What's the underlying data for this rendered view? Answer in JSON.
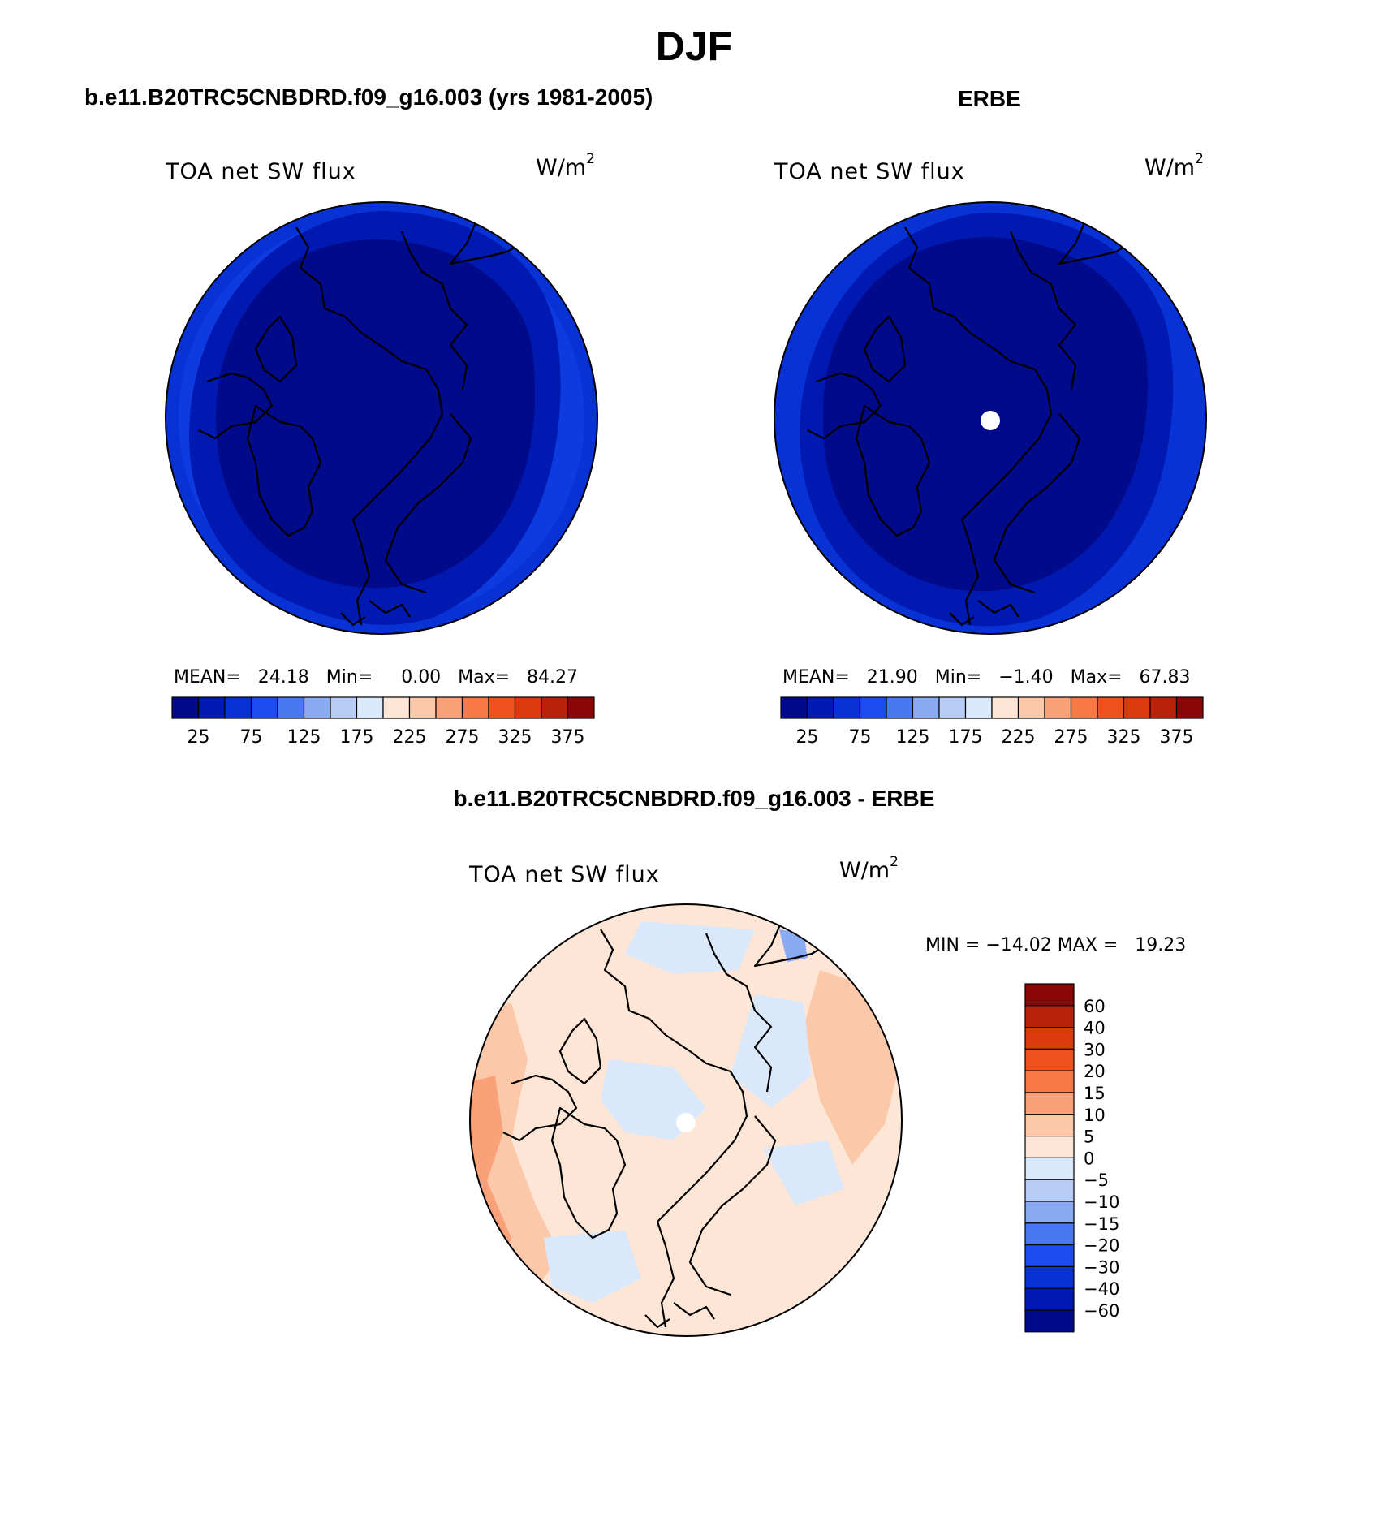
{
  "figure": {
    "title": "DJF"
  },
  "panels": {
    "model": {
      "case_title": "b.e11.B20TRC5CNBDRD.f09_g16.003 (yrs 1981-2005)",
      "label": "TOA net SW flux",
      "units_base": "W/m",
      "units_exp": "2",
      "stats": "MEAN=   24.18   Min=     0.00   Max=   84.27"
    },
    "obs": {
      "case_title": "ERBE",
      "label": "TOA net SW flux",
      "units_base": "W/m",
      "units_exp": "2",
      "stats": "MEAN=   21.90   Min=   −1.40   Max=   67.83"
    },
    "diff": {
      "case_title": "b.e11.B20TRC5CNBDRD.f09_g16.003 - ERBE",
      "label": "TOA net SW flux",
      "units_base": "W/m",
      "units_exp": "2",
      "stats": "MIN = −14.02 MAX =   19.23"
    }
  },
  "colorbar_abs": {
    "colors": [
      "#000a8a",
      "#0019b0",
      "#0832d6",
      "#1a4cf0",
      "#4a78f0",
      "#8aaaf4",
      "#b8ccf8",
      "#dae8fc",
      "#fde6d6",
      "#fcc8aa",
      "#f9a27a",
      "#f77a46",
      "#f0521e",
      "#dc3a0e",
      "#b82208",
      "#880606"
    ],
    "labels": [
      "25",
      "75",
      "125",
      "175",
      "225",
      "275",
      "325",
      "375"
    ]
  },
  "colorbar_diff": {
    "colors": [
      "#880606",
      "#b82208",
      "#dc3a0e",
      "#f0521e",
      "#f77a46",
      "#f9a27a",
      "#fcc8aa",
      "#fde6d6",
      "#dae8fc",
      "#b8ccf8",
      "#8aaaf4",
      "#4a78f0",
      "#1a4cf0",
      "#0832d6",
      "#0019b0",
      "#000a8a"
    ],
    "labels": [
      "60",
      "40",
      "30",
      "20",
      "15",
      "10",
      "5",
      "0",
      "−5",
      "−10",
      "−15",
      "−20",
      "−30",
      "−40",
      "−60"
    ]
  },
  "colors": {
    "deep_blue": "#000a8a",
    "mid_blue": "#0019b0",
    "blue3": "#0832d6",
    "land_outline": "#000000"
  }
}
